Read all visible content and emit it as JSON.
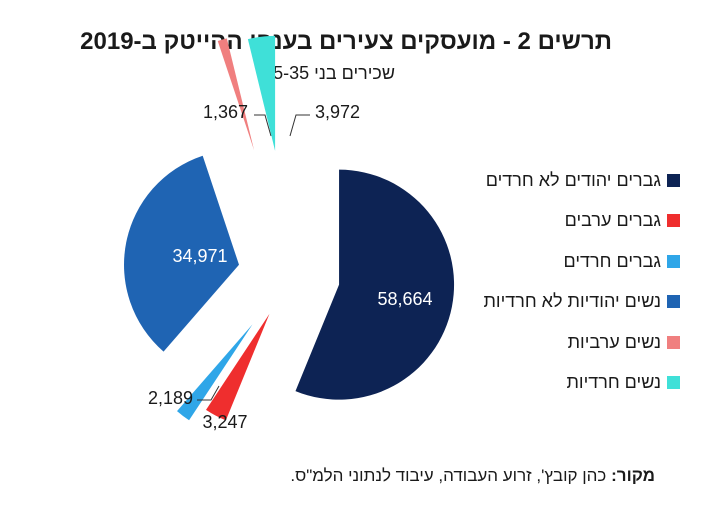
{
  "chart_data": {
    "type": "pie",
    "title": "תרשים 2 - מועסקים צעירים בענפי ההייטק ב-2019",
    "subtitle": "שכירים בני 25-35",
    "slices": [
      {
        "label": "גברים יהודים לא חרדים",
        "value": 58664,
        "value_label": "58,664",
        "color": "#0d2354"
      },
      {
        "label": "גברים ערבים",
        "value": 3247,
        "value_label": "3,247",
        "color": "#ef2e2e"
      },
      {
        "label": "גברים חרדים",
        "value": 2189,
        "value_label": "2,189",
        "color": "#2fa6e8"
      },
      {
        "label": "נשים יהודיות לא חרדיות",
        "value": 34971,
        "value_label": "34,971",
        "color": "#1f64b3"
      },
      {
        "label": "נשים ערביות",
        "value": 1367,
        "value_label": "1,367",
        "color": "#f07f7f"
      },
      {
        "label": "נשים חרדיות",
        "value": 3972,
        "value_label": "3,972",
        "color": "#3fe0d8"
      }
    ],
    "legend_position": "right"
  },
  "source": {
    "label": "מקור:",
    "text": "כהן קובץ', זרוע העבודה, עיבוד לנתוני הלמ\"ס."
  }
}
